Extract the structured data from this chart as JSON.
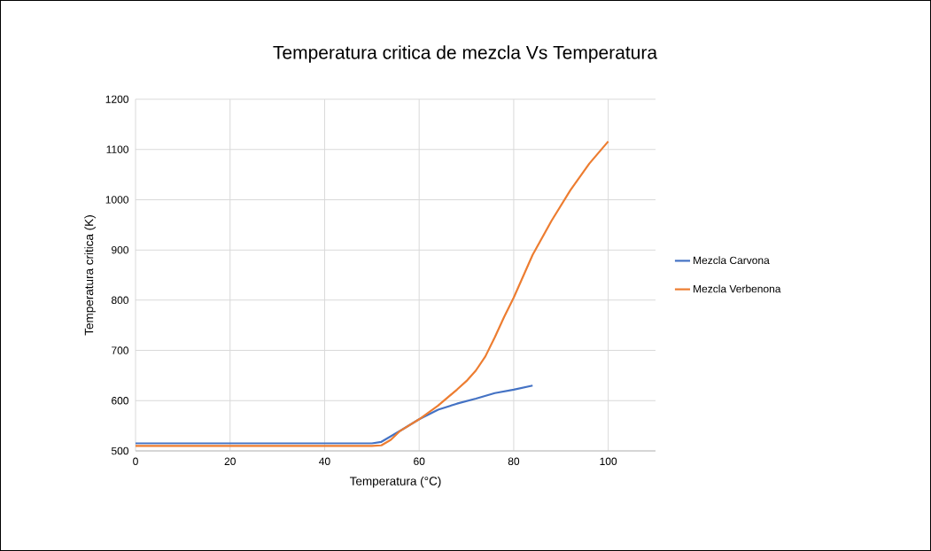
{
  "chart_data": {
    "type": "line",
    "title": "Temperatura critica de mezcla Vs Temperatura",
    "xlabel": "Temperatura (°C)",
    "ylabel": "Temperatura critica (K)",
    "xlim": [
      0,
      110
    ],
    "xticks": [
      0,
      20,
      40,
      60,
      80,
      100
    ],
    "ylim": [
      500,
      1200
    ],
    "yticks": [
      500,
      600,
      700,
      800,
      900,
      1000,
      1100,
      1200
    ],
    "grid": true,
    "legend": "right",
    "marker": "none",
    "line_style": "solid",
    "series": [
      {
        "name": "Mezcla Carvona",
        "color": "#4472c4",
        "x": [
          0,
          50,
          52,
          56,
          60,
          64,
          68,
          72,
          76,
          80,
          84
        ],
        "values": [
          515,
          515,
          518,
          540,
          563,
          582,
          594,
          604,
          615,
          622,
          630
        ]
      },
      {
        "name": "Mezcla Verbenona",
        "color": "#ed7d31",
        "x": [
          0,
          50,
          52,
          54,
          56,
          60,
          64,
          68,
          70,
          72,
          74,
          76,
          78,
          80,
          84,
          88,
          92,
          96,
          100
        ],
        "values": [
          510,
          510,
          511,
          522,
          540,
          563,
          590,
          622,
          639,
          660,
          688,
          726,
          767,
          805,
          890,
          958,
          1019,
          1072,
          1116
        ]
      }
    ]
  }
}
